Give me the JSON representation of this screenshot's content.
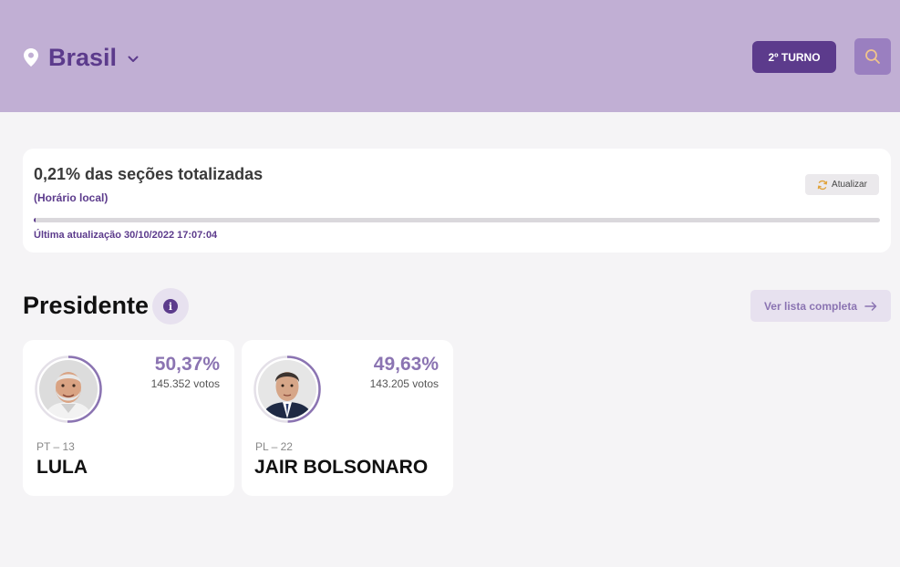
{
  "header": {
    "location": "Brasil",
    "turno_label": "2º TURNO"
  },
  "status": {
    "sections_text": "0,21% das seções totalizadas",
    "local_time": "(Horário local)",
    "refresh_label": "Atualizar",
    "progress_percent": 0.21,
    "last_update": "Última atualização 30/10/2022 17:07:04"
  },
  "president": {
    "title": "Presidente",
    "view_full_list": "Ver lista completa",
    "candidates": [
      {
        "name": "LULA",
        "party": "PT – 13",
        "percent": "50,37%",
        "votes": "145.352 votos",
        "share": 50.37
      },
      {
        "name": "JAIR BOLSONARO",
        "party": "PL – 22",
        "percent": "49,63%",
        "votes": "143.205 votos",
        "share": 49.63
      }
    ]
  },
  "colors": {
    "header_bg": "#c1afd4",
    "accent": "#5c3b8c",
    "accent_light": "#8b74b2"
  },
  "icons": {
    "location": "map-pin-icon",
    "dropdown": "chevron-down-icon",
    "search": "search-icon",
    "refresh": "refresh-icon",
    "info": "info-icon",
    "arrow": "arrow-right-icon"
  }
}
